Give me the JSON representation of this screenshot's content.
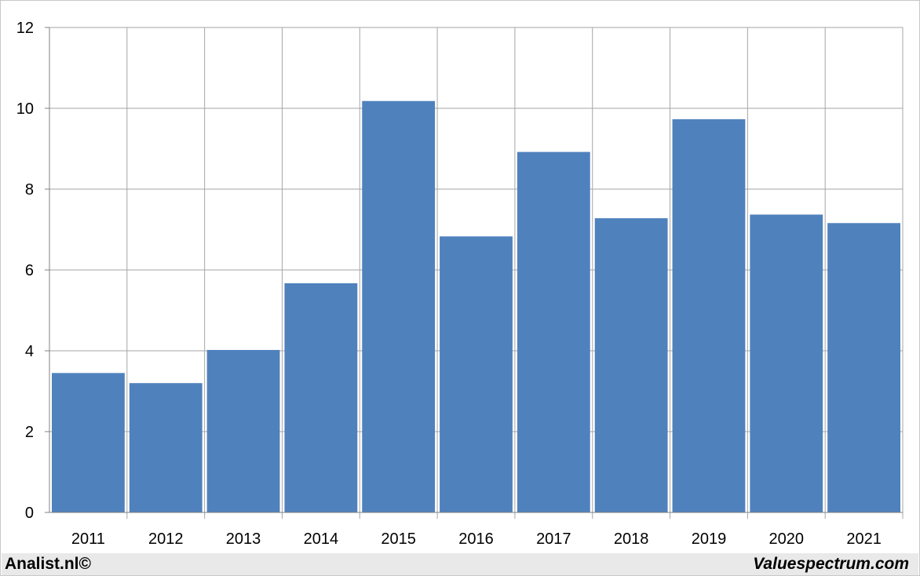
{
  "chart_data": {
    "type": "bar",
    "categories": [
      "2011",
      "2012",
      "2013",
      "2014",
      "2015",
      "2016",
      "2017",
      "2018",
      "2019",
      "2020",
      "2021"
    ],
    "values": [
      3.45,
      3.2,
      4.02,
      5.67,
      10.18,
      6.83,
      8.92,
      7.28,
      9.73,
      7.37,
      7.16
    ],
    "yticks": [
      "0",
      "2",
      "4",
      "6",
      "8",
      "10",
      "12"
    ],
    "ylim": [
      0,
      12
    ],
    "grid": true,
    "bar_color": "#4f81bd",
    "grid_color": "#a6a6a6"
  },
  "footer": {
    "left": "Analist.nl©",
    "right": "Valuespectrum.com"
  }
}
